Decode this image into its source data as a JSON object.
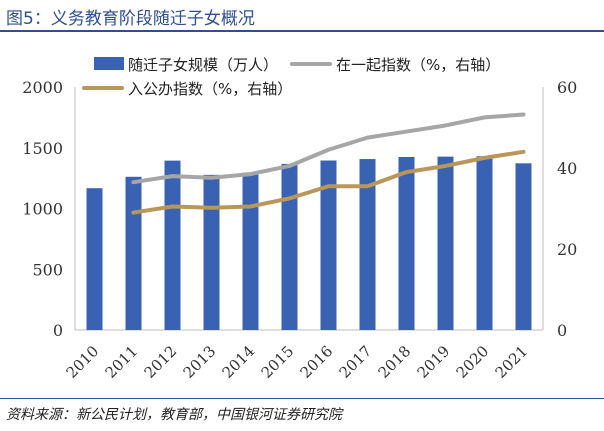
{
  "figure_title": "图5：义务教育阶段随迁子女概况",
  "source_text": "资料来源：新公民计划，教育部，中国银河证券研究院",
  "colors": {
    "bar": "#3a62b2",
    "line_qiyi": "#a6a6a6",
    "line_ruxue": "#b9975b",
    "title": "#2f4f8f"
  },
  "chart_data": {
    "type": "bar",
    "title": "",
    "categories": [
      "2010",
      "2011",
      "2012",
      "2013",
      "2014",
      "2015",
      "2016",
      "2017",
      "2018",
      "2019",
      "2020",
      "2021"
    ],
    "y_left": {
      "min": 0,
      "max": 2000,
      "ticks": [
        "0",
        "500",
        "1000",
        "1500",
        "2000"
      ]
    },
    "y_right": {
      "min": 0,
      "max": 60,
      "ticks": [
        "0",
        "20",
        "40",
        "60"
      ]
    },
    "series": [
      {
        "name": "随迁子女规模（万人）",
        "type": "bar",
        "axis": "left",
        "values": [
          1167,
          1261,
          1394,
          1277,
          1295,
          1367,
          1395,
          1407,
          1424,
          1427,
          1430,
          1372
        ]
      },
      {
        "name": "在一起指数（%，右轴）",
        "type": "line",
        "axis": "right",
        "values": [
          null,
          36.5,
          38.0,
          37.6,
          38.5,
          40.5,
          44.5,
          47.5,
          49.0,
          50.5,
          52.5,
          53.2
        ]
      },
      {
        "name": "入公办指数（%，右轴）",
        "type": "line",
        "axis": "right",
        "values": [
          null,
          29.0,
          30.5,
          30.2,
          30.5,
          32.5,
          35.5,
          35.5,
          39.0,
          40.5,
          42.5,
          44.0
        ]
      }
    ],
    "legend_position": "top",
    "grid": false
  }
}
